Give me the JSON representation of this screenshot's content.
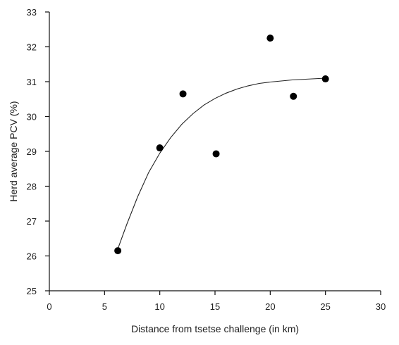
{
  "chart_data": {
    "type": "scatter",
    "xlabel": "Distance from tsetse challenge (in km)",
    "ylabel": "Herd average PCV (%)",
    "xlim": [
      0,
      30
    ],
    "ylim": [
      25,
      33
    ],
    "x_ticks": [
      0,
      5,
      10,
      15,
      20,
      25,
      30
    ],
    "y_ticks": [
      25,
      26,
      27,
      28,
      29,
      30,
      31,
      32,
      33
    ],
    "grid": false,
    "series": [
      {
        "points": [
          {
            "x": 6.2,
            "y": 26.15
          },
          {
            "x": 10.0,
            "y": 29.1
          },
          {
            "x": 12.1,
            "y": 30.65
          },
          {
            "x": 15.1,
            "y": 28.93
          },
          {
            "x": 20.0,
            "y": 32.25
          },
          {
            "x": 22.1,
            "y": 30.58
          },
          {
            "x": 25.0,
            "y": 31.08
          }
        ]
      }
    ],
    "fit_curve": [
      {
        "x": 6.2,
        "y": 26.2
      },
      {
        "x": 7.0,
        "y": 26.9
      },
      {
        "x": 8.0,
        "y": 27.7
      },
      {
        "x": 9.0,
        "y": 28.4
      },
      {
        "x": 10.0,
        "y": 28.95
      },
      {
        "x": 11.0,
        "y": 29.4
      },
      {
        "x": 12.0,
        "y": 29.78
      },
      {
        "x": 13.0,
        "y": 30.08
      },
      {
        "x": 14.0,
        "y": 30.33
      },
      {
        "x": 15.0,
        "y": 30.52
      },
      {
        "x": 16.0,
        "y": 30.67
      },
      {
        "x": 17.0,
        "y": 30.79
      },
      {
        "x": 18.0,
        "y": 30.88
      },
      {
        "x": 19.0,
        "y": 30.95
      },
      {
        "x": 20.0,
        "y": 30.99
      },
      {
        "x": 22.0,
        "y": 31.05
      },
      {
        "x": 25.0,
        "y": 31.1
      }
    ]
  }
}
